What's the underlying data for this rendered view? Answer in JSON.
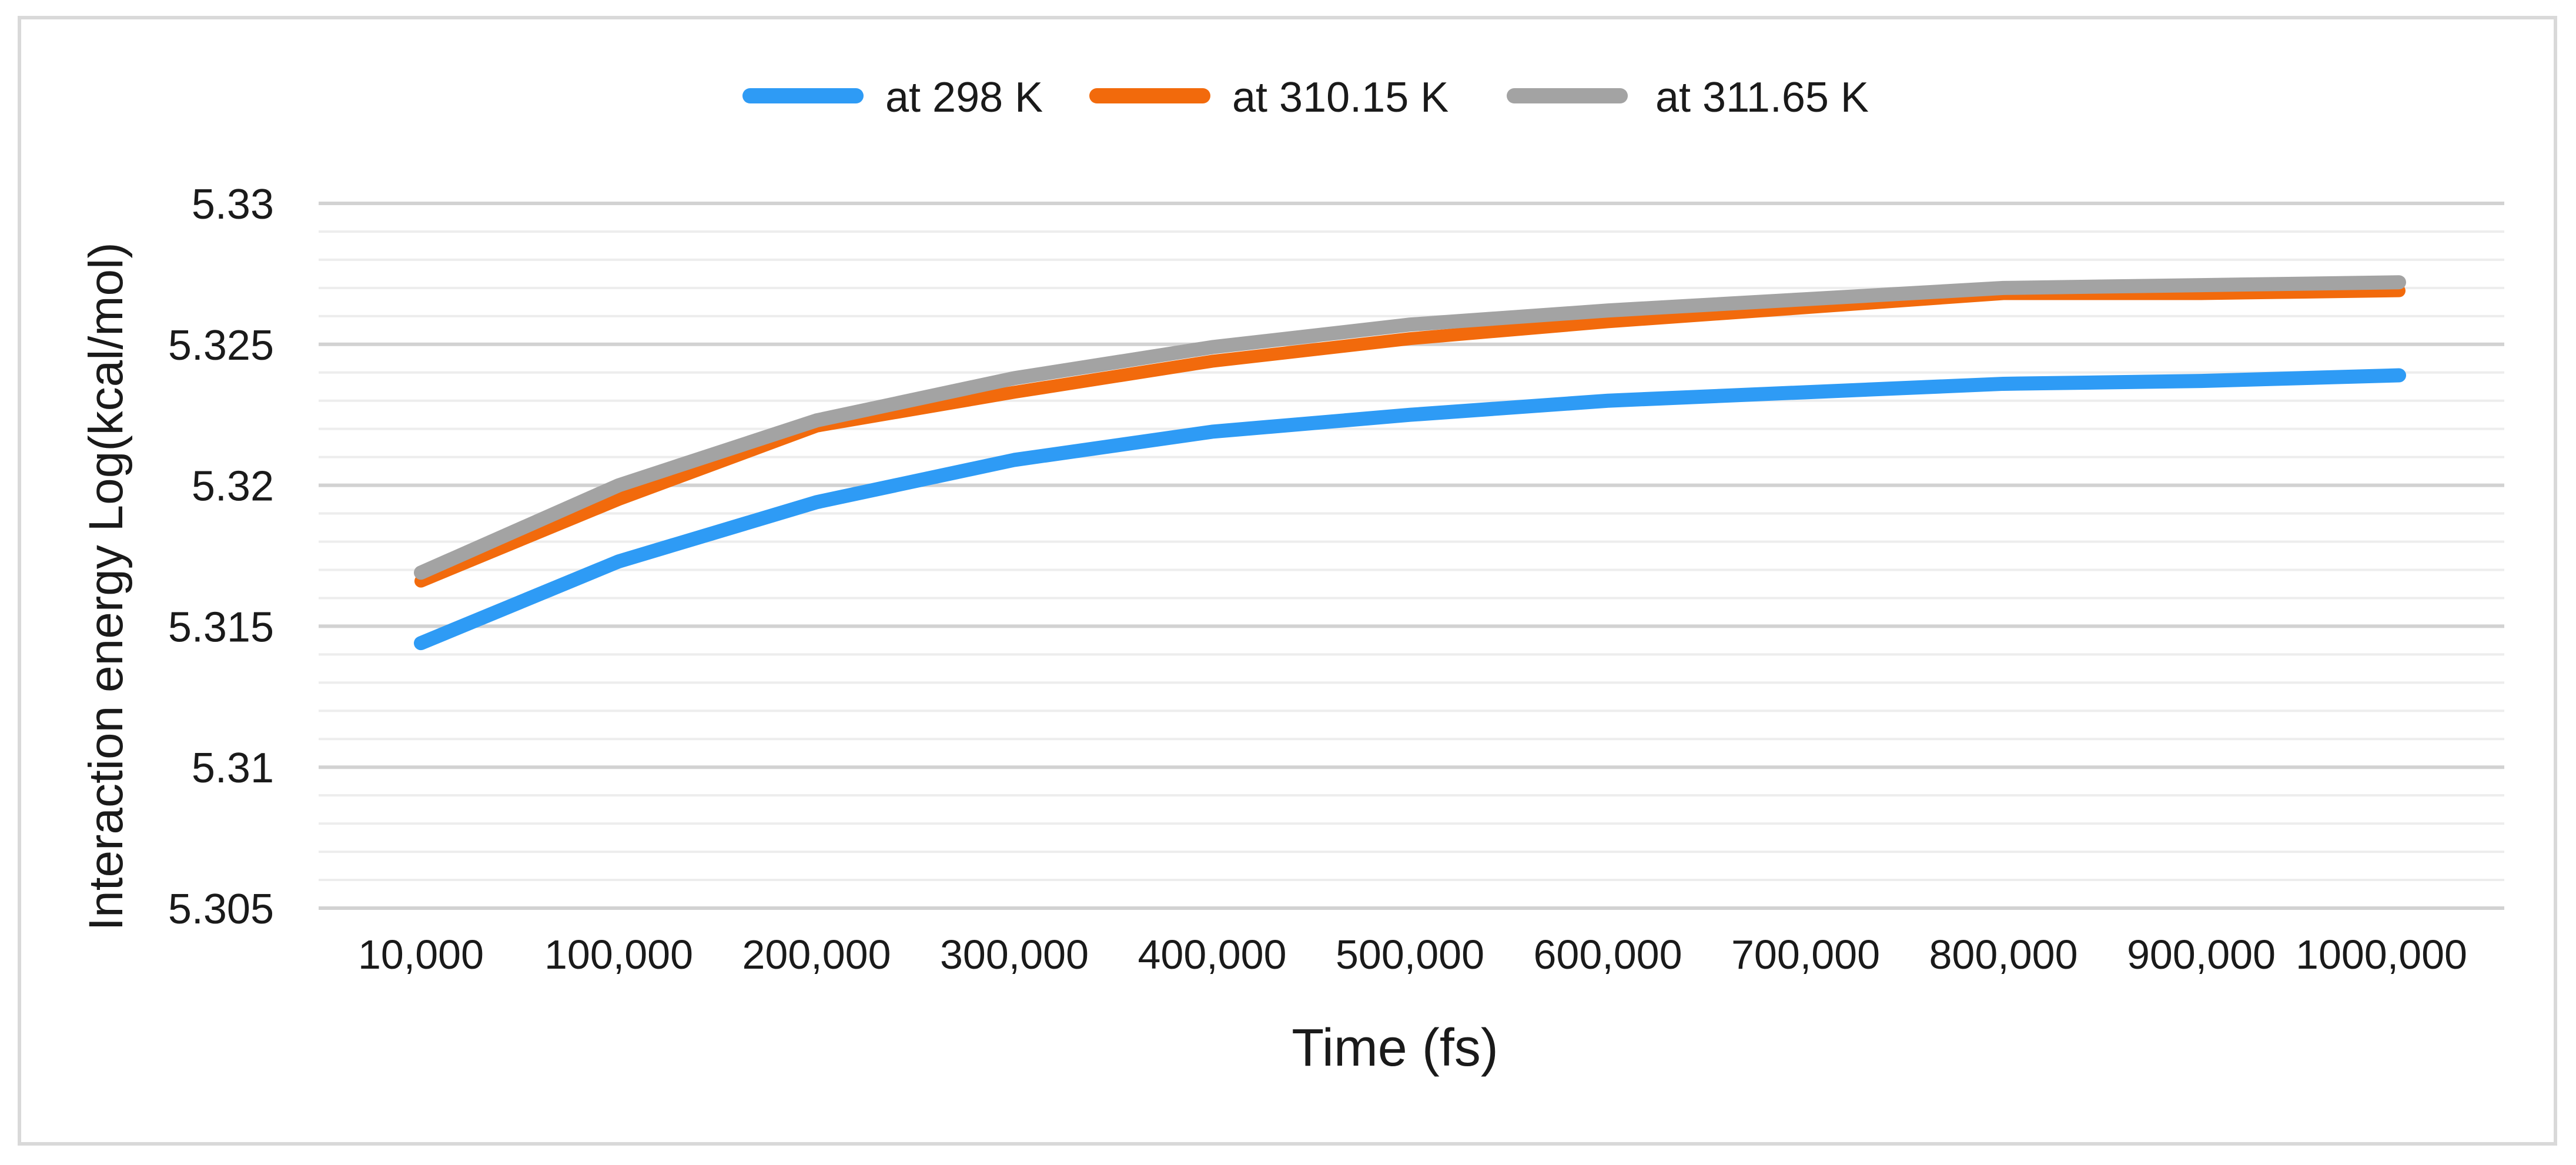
{
  "chart_data": {
    "type": "line",
    "title": "",
    "xlabel": "Time (fs)",
    "ylabel": "Interaction energy Log(kcal/mol)",
    "categories": [
      "10,000",
      "100,000",
      "200,000",
      "300,000",
      "400,000",
      "500,000",
      "600,000",
      "700,000",
      "800,000",
      "900,000",
      "1000,000"
    ],
    "ylim": [
      5.305,
      5.33
    ],
    "yticks": [
      5.305,
      5.31,
      5.315,
      5.32,
      5.325,
      5.33
    ],
    "ytick_labels": [
      "5.305",
      "5.31",
      "5.315",
      "5.32",
      "5.325",
      "5.33"
    ],
    "minor_gridlines": true,
    "legend_position": "top-center",
    "series": [
      {
        "name": "at 298 K",
        "color": "#2E9BF5",
        "values": [
          5.3144,
          5.3173,
          5.3194,
          5.3209,
          5.3219,
          5.3225,
          5.323,
          5.3233,
          5.3236,
          5.3237,
          5.3239
        ]
      },
      {
        "name": "at 310.15 K",
        "color": "#F26A0C",
        "values": [
          5.3166,
          5.3195,
          5.3221,
          5.3233,
          5.3244,
          5.3252,
          5.3258,
          5.3263,
          5.3268,
          5.3268,
          5.3269
        ]
      },
      {
        "name": "at 311.65 K",
        "color": "#A3A3A3",
        "values": [
          5.3169,
          5.32,
          5.3223,
          5.3238,
          5.3249,
          5.3257,
          5.3262,
          5.3266,
          5.327,
          5.3271,
          5.3272
        ]
      }
    ]
  }
}
